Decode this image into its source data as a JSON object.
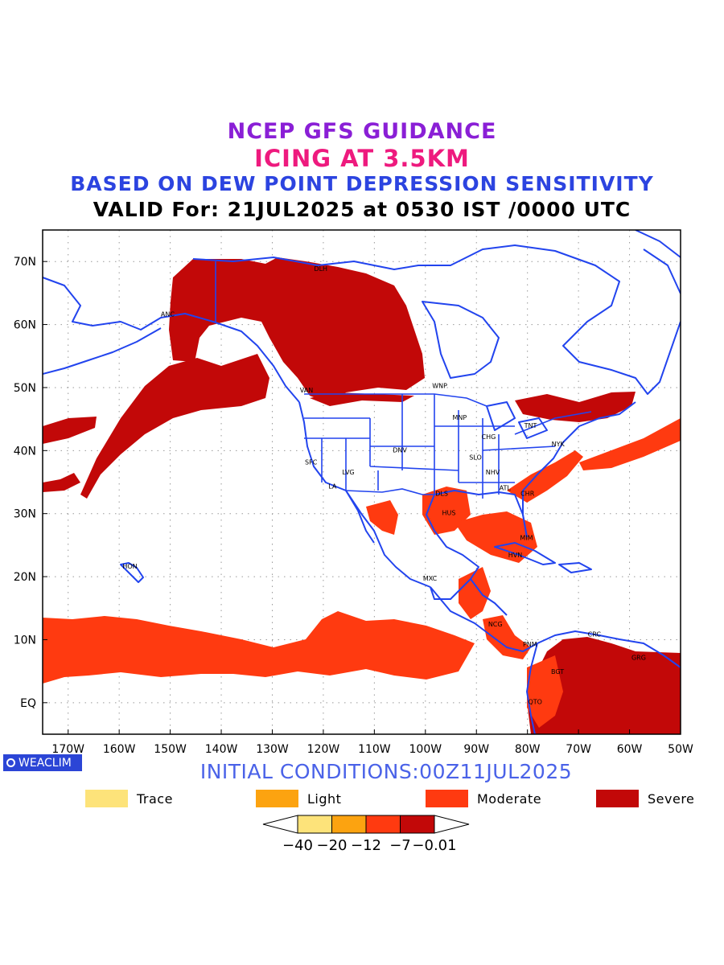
{
  "titles": {
    "line1": "NCEP GFS GUIDANCE",
    "line2": "ICING AT 3.5KM",
    "line3": "BASED ON DEW POINT DEPRESSION SENSITIVITY",
    "line4": "VALID For: 21JUL2025 at 0530 IST /0000 UTC"
  },
  "colors": {
    "title1": "#8a1fd6",
    "title2": "#ee1a7e",
    "title3": "#2c44e0",
    "title4": "#000000",
    "coast": "#2244ee",
    "trace": "#fde37a",
    "light": "#fca310",
    "moderate": "#ff3a10",
    "severe": "#c20808",
    "initial": "#4a62e8"
  },
  "axes": {
    "lon_labels": [
      "170W",
      "160W",
      "150W",
      "140W",
      "130W",
      "120W",
      "110W",
      "100W",
      "90W",
      "80W",
      "70W",
      "60W",
      "50W"
    ],
    "lat_labels": [
      "70N",
      "60N",
      "50N",
      "40N",
      "30N",
      "20N",
      "10N",
      "EQ"
    ],
    "lon_range": [
      -175,
      -50
    ],
    "lat_range": [
      -5,
      75
    ],
    "grid": "dotted"
  },
  "stations": [
    {
      "code": "DLH",
      "lon": -120.5,
      "lat": 68.5
    },
    {
      "code": "ANC",
      "lon": -150.5,
      "lat": 61.3
    },
    {
      "code": "VAN",
      "lon": -123.3,
      "lat": 49.2
    },
    {
      "code": "WNP",
      "lon": -97.2,
      "lat": 49.9
    },
    {
      "code": "MNP",
      "lon": -93.3,
      "lat": 44.9
    },
    {
      "code": "CHG",
      "lon": -87.6,
      "lat": 41.8
    },
    {
      "code": "TNT",
      "lon": -79.4,
      "lat": 43.6
    },
    {
      "code": "NYK",
      "lon": -74.0,
      "lat": 40.7
    },
    {
      "code": "DNV",
      "lon": -105.0,
      "lat": 39.7
    },
    {
      "code": "SFC",
      "lon": -122.4,
      "lat": 37.8
    },
    {
      "code": "SLO",
      "lon": -90.2,
      "lat": 38.6
    },
    {
      "code": "LVG",
      "lon": -115.1,
      "lat": 36.2
    },
    {
      "code": "NHV",
      "lon": -86.8,
      "lat": 36.2
    },
    {
      "code": "LA",
      "lon": -118.2,
      "lat": 34.0
    },
    {
      "code": "ATL",
      "lon": -84.4,
      "lat": 33.7
    },
    {
      "code": "CHR",
      "lon": -80.0,
      "lat": 32.8
    },
    {
      "code": "DLS",
      "lon": -96.8,
      "lat": 32.8
    },
    {
      "code": "HUS",
      "lon": -95.4,
      "lat": 29.8
    },
    {
      "code": "MIM",
      "lon": -80.2,
      "lat": 25.8
    },
    {
      "code": "HVN",
      "lon": -82.4,
      "lat": 23.1
    },
    {
      "code": "HON",
      "lon": -157.9,
      "lat": 21.3
    },
    {
      "code": "MXC",
      "lon": -99.1,
      "lat": 19.4
    },
    {
      "code": "NCG",
      "lon": -86.3,
      "lat": 12.1
    },
    {
      "code": "CRC",
      "lon": -66.9,
      "lat": 10.5
    },
    {
      "code": "PNM",
      "lon": -79.5,
      "lat": 8.9
    },
    {
      "code": "GRG",
      "lon": -58.2,
      "lat": 6.8
    },
    {
      "code": "BGT",
      "lon": -74.1,
      "lat": 4.6
    },
    {
      "code": "QTO",
      "lon": -78.5,
      "lat": -0.2
    }
  ],
  "initial_conditions": "INITIAL CONDITIONS:00Z11JUL2025",
  "badge": "WEACLIM",
  "legend": [
    {
      "label": "Trace",
      "color": "#fde37a"
    },
    {
      "label": "Light",
      "color": "#fca310"
    },
    {
      "label": "Moderate",
      "color": "#ff3a10"
    },
    {
      "label": "Severe",
      "color": "#c20808"
    }
  ],
  "colorbar": {
    "tick_labels": [
      "−40",
      "−20",
      "−12",
      "−7",
      "−0.01"
    ],
    "colors": [
      "#fde37a",
      "#fca310",
      "#ff3a10",
      "#c20808"
    ]
  }
}
